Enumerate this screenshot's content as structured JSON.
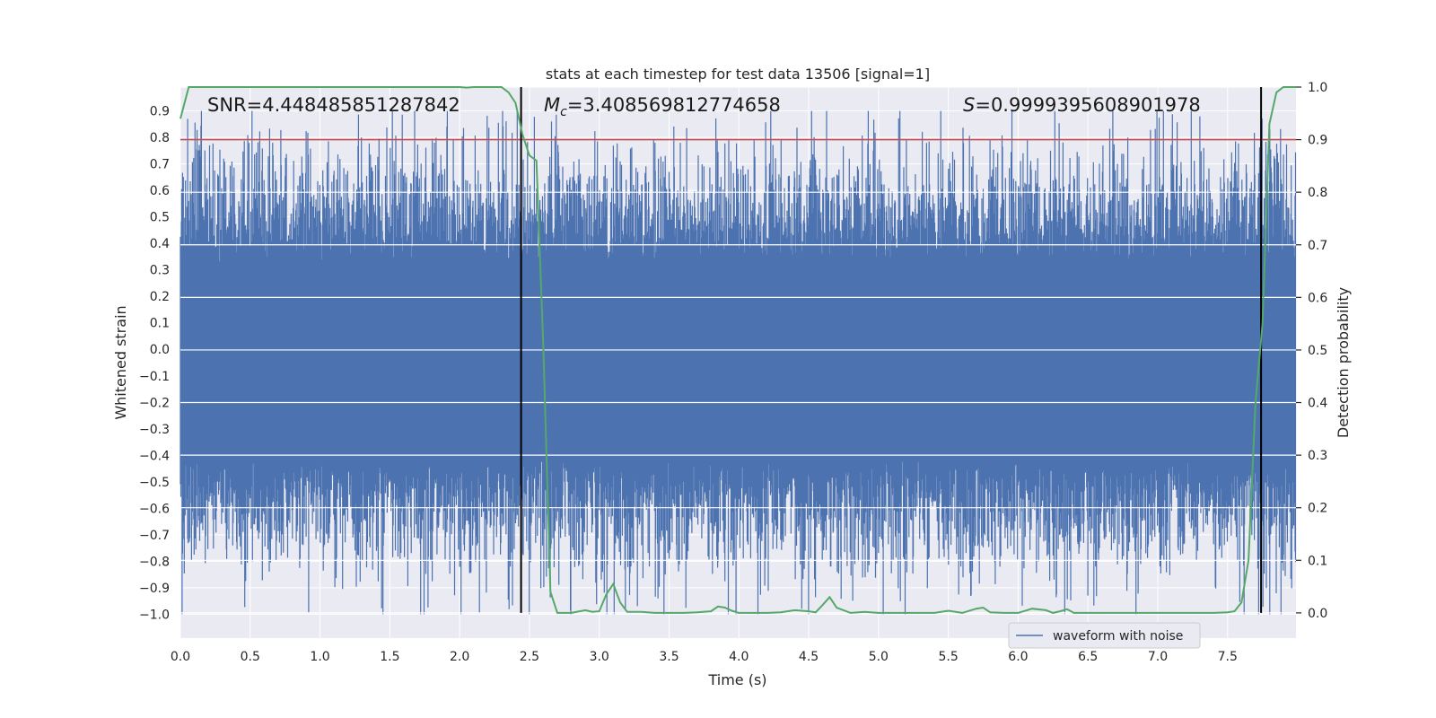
{
  "chart_data": {
    "type": "line",
    "title": "stats at each timestep for test data 13506 [signal=1]",
    "xlabel": "Time (s)",
    "ylabel_left": "Whitened strain",
    "ylabel_right": "Detection probability",
    "xlim": [
      0.0,
      7.99
    ],
    "ylim_left": [
      -1.09,
      0.99
    ],
    "ylim_right": [
      -0.048,
      1.0
    ],
    "xticks": [
      0.0,
      0.5,
      1.0,
      1.5,
      2.0,
      2.5,
      3.0,
      3.5,
      4.0,
      4.5,
      5.0,
      5.5,
      6.0,
      6.5,
      7.0,
      7.5
    ],
    "xtick_labels": [
      "0.0",
      "0.5",
      "1.0",
      "1.5",
      "2.0",
      "2.5",
      "3.0",
      "3.5",
      "4.0",
      "4.5",
      "5.0",
      "5.5",
      "6.0",
      "6.5",
      "7.0",
      "7.5"
    ],
    "yticks_left": [
      0.9,
      0.8,
      0.7,
      0.6,
      0.5,
      0.4,
      0.3,
      0.2,
      0.1,
      0.0,
      -0.1,
      -0.2,
      -0.3,
      -0.4,
      -0.5,
      -0.6,
      -0.7,
      -0.8,
      -0.9,
      -1.0
    ],
    "ytick_labels_left": [
      "0.9",
      "0.8",
      "0.7",
      "0.6",
      "0.5",
      "0.4",
      "0.3",
      "0.2",
      "0.1",
      "0.0",
      "−0.1",
      "−0.2",
      "−0.3",
      "−0.4",
      "−0.5",
      "−0.6",
      "−0.7",
      "−0.8",
      "−0.9",
      "−1.0"
    ],
    "yticks_right": [
      1.0,
      0.9,
      0.8,
      0.7,
      0.6,
      0.5,
      0.4,
      0.3,
      0.2,
      0.1,
      0.0
    ],
    "ytick_labels_right": [
      "1.0",
      "0.9",
      "0.8",
      "0.7",
      "0.6",
      "0.5",
      "0.4",
      "0.3",
      "0.2",
      "0.1",
      "0.0"
    ],
    "annotations": {
      "snr": "SNR=4.448485851287842",
      "mc_prefix": "M",
      "mc_sub": "c",
      "mc_value": "=3.408569812774658",
      "s_prefix": "S",
      "s_value": "=0.9999395608901978"
    },
    "threshold_line": {
      "axis": "right",
      "y": 0.9,
      "color": "#c44e52"
    },
    "vertical_lines": {
      "x": [
        2.44,
        7.74
      ],
      "color": "#000000"
    },
    "waveform": {
      "name": "waveform with noise",
      "color": "#4c72b0",
      "sample_rate_hz": 2048,
      "sigma": 0.25,
      "core_fill_range": [
        -0.42,
        0.33
      ],
      "approx_max": 0.9,
      "approx_min": -1.0
    },
    "detection_probability": {
      "color": "#55a868",
      "x": [
        0.0,
        0.06,
        0.12,
        0.2,
        0.3,
        0.5,
        0.8,
        1.0,
        1.2,
        1.5,
        1.8,
        2.0,
        2.05,
        2.1,
        2.2,
        2.3,
        2.35,
        2.4,
        2.45,
        2.5,
        2.55,
        2.6,
        2.65,
        2.7,
        2.8,
        2.9,
        2.95,
        3.0,
        3.05,
        3.1,
        3.15,
        3.2,
        3.3,
        3.4,
        3.6,
        3.7,
        3.8,
        3.85,
        3.9,
        3.95,
        4.0,
        4.1,
        4.2,
        4.3,
        4.4,
        4.5,
        4.55,
        4.6,
        4.65,
        4.7,
        4.8,
        4.9,
        5.0,
        5.2,
        5.4,
        5.5,
        5.6,
        5.7,
        5.75,
        5.8,
        5.9,
        6.0,
        6.1,
        6.2,
        6.25,
        6.3,
        6.35,
        6.4,
        6.5,
        6.7,
        6.9,
        7.0,
        7.2,
        7.4,
        7.5,
        7.55,
        7.6,
        7.65,
        7.7,
        7.75,
        7.8,
        7.85,
        7.9,
        7.95,
        7.99
      ],
      "y": [
        0.94,
        1.0,
        1.0,
        1.0,
        1.0,
        1.0,
        1.0,
        1.0,
        1.0,
        1.0,
        1.0,
        1.0,
        0.999,
        1.0,
        1.0,
        1.0,
        0.99,
        0.97,
        0.91,
        0.87,
        0.86,
        0.5,
        0.04,
        0.0,
        0.0,
        0.005,
        0.002,
        0.003,
        0.035,
        0.055,
        0.02,
        0.002,
        0.002,
        0.0,
        0.0,
        0.001,
        0.003,
        0.012,
        0.01,
        0.004,
        0.0,
        0.0,
        0.0,
        0.001,
        0.005,
        0.003,
        0.001,
        0.015,
        0.03,
        0.01,
        0.0,
        0.002,
        0.0,
        0.0,
        0.0,
        0.004,
        0.0,
        0.008,
        0.01,
        0.001,
        0.0,
        0.0,
        0.008,
        0.005,
        0.0,
        0.003,
        0.007,
        0.0,
        0.0,
        0.0,
        0.0,
        0.0,
        0.0,
        0.0,
        0.001,
        0.003,
        0.02,
        0.1,
        0.4,
        0.55,
        0.93,
        0.99,
        1.0,
        1.0,
        1.0
      ]
    },
    "legend": {
      "placement": "lower-right",
      "entry": "waveform with noise"
    }
  }
}
